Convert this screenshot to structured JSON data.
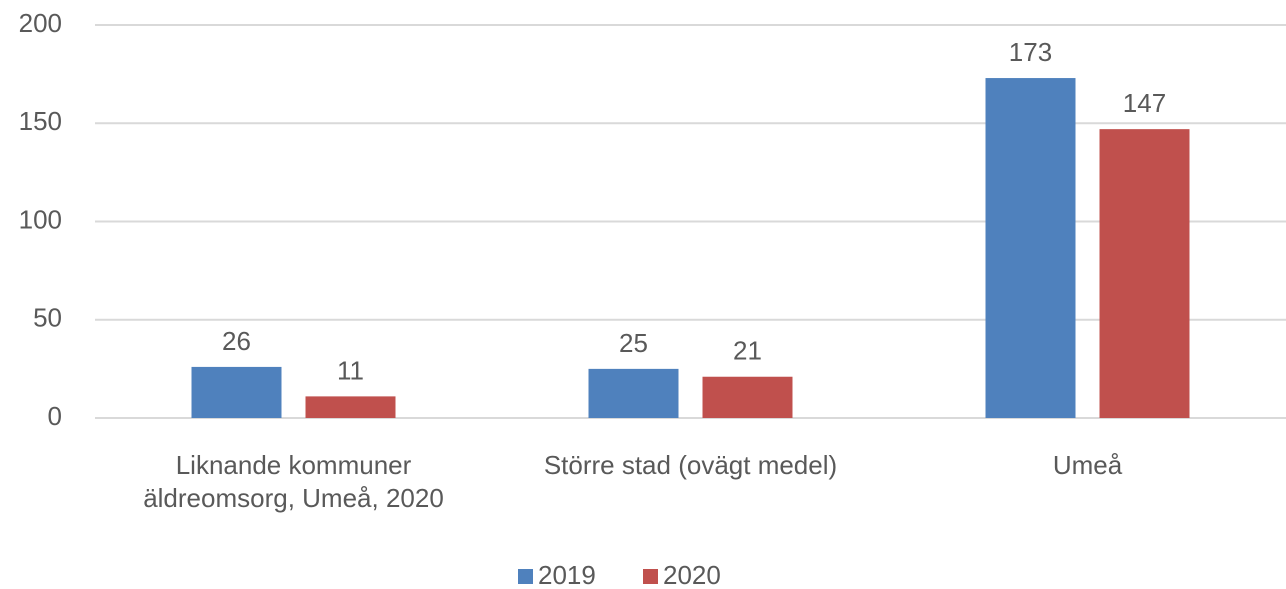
{
  "chart_data": {
    "type": "bar",
    "categories": [
      "Liknande kommuner äldreomsorg, Umeå, 2020",
      "Större stad (ovägt medel)",
      "Umeå"
    ],
    "series": [
      {
        "name": "2019",
        "color": "#4f81bd",
        "values": [
          26,
          25,
          173
        ]
      },
      {
        "name": "2020",
        "color": "#c0504d",
        "values": [
          11,
          21,
          147
        ]
      }
    ],
    "ylim": [
      0,
      200
    ],
    "yticks": [
      0,
      50,
      100,
      150,
      200
    ],
    "grid": true,
    "legend": "bottom"
  }
}
